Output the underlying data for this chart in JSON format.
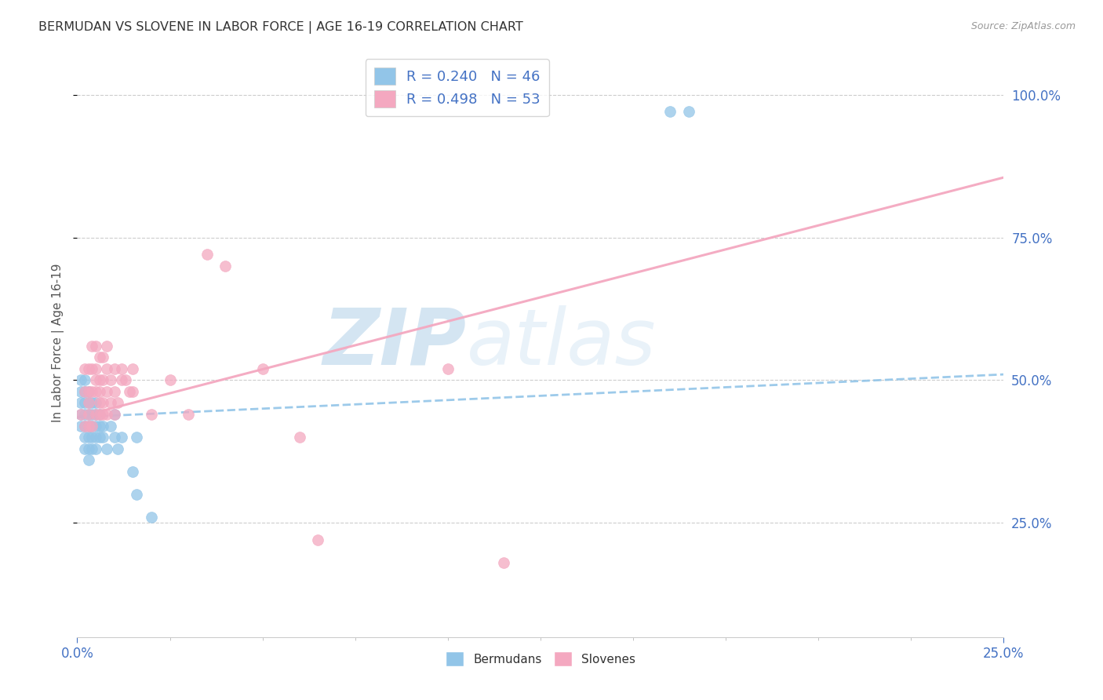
{
  "title": "BERMUDAN VS SLOVENE IN LABOR FORCE | AGE 16-19 CORRELATION CHART",
  "source": "Source: ZipAtlas.com",
  "ylabel": "In Labor Force | Age 16-19",
  "xlim": [
    0.0,
    0.25
  ],
  "ylim": [
    0.05,
    1.08
  ],
  "yticks": [
    0.25,
    0.5,
    0.75,
    1.0
  ],
  "blue_R": 0.24,
  "blue_N": 46,
  "pink_R": 0.498,
  "pink_N": 53,
  "blue_color": "#92c5e8",
  "pink_color": "#f4a8c0",
  "blue_line_color": "#92c5e8",
  "pink_line_color": "#f4a8c0",
  "watermark_zip": "ZIP",
  "watermark_atlas": "atlas",
  "blue_scatter_x": [
    0.001,
    0.001,
    0.001,
    0.001,
    0.001,
    0.002,
    0.002,
    0.002,
    0.002,
    0.002,
    0.002,
    0.002,
    0.003,
    0.003,
    0.003,
    0.003,
    0.003,
    0.003,
    0.003,
    0.004,
    0.004,
    0.004,
    0.004,
    0.004,
    0.005,
    0.005,
    0.005,
    0.005,
    0.005,
    0.006,
    0.006,
    0.006,
    0.007,
    0.007,
    0.008,
    0.009,
    0.01,
    0.01,
    0.011,
    0.012,
    0.015,
    0.016,
    0.016,
    0.02,
    0.16,
    0.165
  ],
  "blue_scatter_y": [
    0.42,
    0.44,
    0.46,
    0.48,
    0.5,
    0.38,
    0.4,
    0.42,
    0.44,
    0.46,
    0.48,
    0.5,
    0.36,
    0.38,
    0.4,
    0.42,
    0.44,
    0.46,
    0.48,
    0.38,
    0.4,
    0.42,
    0.44,
    0.46,
    0.38,
    0.4,
    0.42,
    0.44,
    0.46,
    0.4,
    0.42,
    0.44,
    0.4,
    0.42,
    0.38,
    0.42,
    0.4,
    0.44,
    0.38,
    0.4,
    0.34,
    0.4,
    0.3,
    0.26,
    0.97,
    0.97
  ],
  "pink_scatter_x": [
    0.001,
    0.002,
    0.002,
    0.002,
    0.003,
    0.003,
    0.003,
    0.003,
    0.003,
    0.004,
    0.004,
    0.004,
    0.004,
    0.005,
    0.005,
    0.005,
    0.005,
    0.005,
    0.006,
    0.006,
    0.006,
    0.006,
    0.006,
    0.007,
    0.007,
    0.007,
    0.007,
    0.008,
    0.008,
    0.008,
    0.008,
    0.009,
    0.009,
    0.01,
    0.01,
    0.01,
    0.011,
    0.012,
    0.012,
    0.013,
    0.014,
    0.015,
    0.015,
    0.02,
    0.025,
    0.03,
    0.035,
    0.04,
    0.05,
    0.06,
    0.065,
    0.1,
    0.115
  ],
  "pink_scatter_y": [
    0.44,
    0.42,
    0.48,
    0.52,
    0.42,
    0.44,
    0.46,
    0.48,
    0.52,
    0.42,
    0.48,
    0.52,
    0.56,
    0.44,
    0.48,
    0.5,
    0.52,
    0.56,
    0.44,
    0.46,
    0.48,
    0.5,
    0.54,
    0.44,
    0.46,
    0.5,
    0.54,
    0.44,
    0.48,
    0.52,
    0.56,
    0.46,
    0.5,
    0.44,
    0.48,
    0.52,
    0.46,
    0.5,
    0.52,
    0.5,
    0.48,
    0.48,
    0.52,
    0.44,
    0.5,
    0.44,
    0.72,
    0.7,
    0.52,
    0.4,
    0.22,
    0.52,
    0.18
  ],
  "blue_trend_x": [
    0.0,
    0.25
  ],
  "blue_trend_y": [
    0.435,
    0.51
  ],
  "pink_trend_x": [
    0.0,
    0.25
  ],
  "pink_trend_y": [
    0.435,
    0.855
  ]
}
